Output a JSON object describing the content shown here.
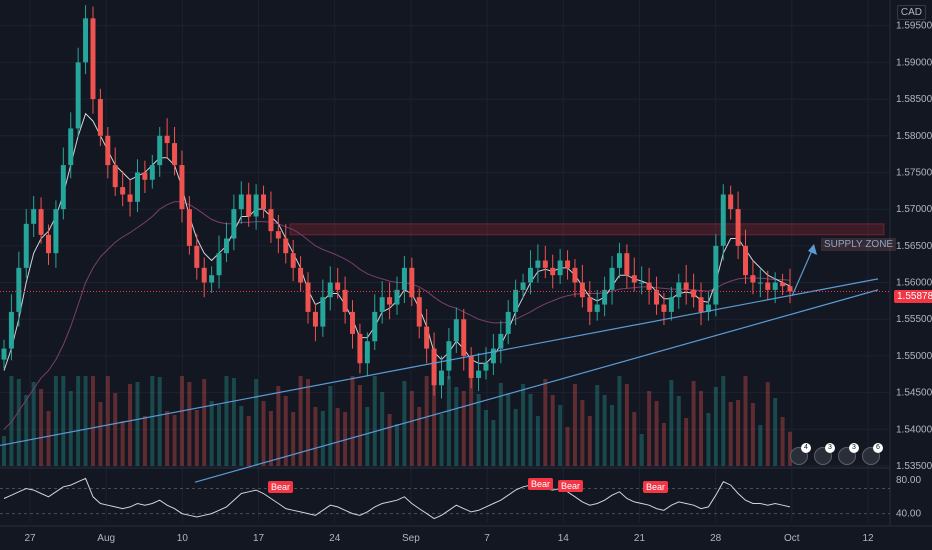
{
  "header": {
    "currency": "CAD"
  },
  "last_price": {
    "label": "1.55878",
    "value": 1.55878,
    "color": "#f23645"
  },
  "annotations": {
    "supply_zone": "SUPPLY ZONE",
    "bear_labels": [
      "Bear",
      "Bear",
      "Bear",
      "Bear"
    ]
  },
  "event_badges": [
    "4",
    "3",
    "3",
    "6"
  ],
  "colors": {
    "background": "#131722",
    "up": "#26a69a",
    "down": "#ef5350",
    "ma_fast": "#d1d4dc",
    "ma_slow": "#7b3f6e",
    "trendline": "#5b9bd5",
    "grid": "#1e2230"
  },
  "chart_data": [
    {
      "type": "candlestick",
      "symbol_currency": "CAD",
      "ylim": [
        1.535,
        1.5985
      ],
      "price_ticks": [
        "1.59500",
        "1.59000",
        "1.58500",
        "1.58000",
        "1.57500",
        "1.57000",
        "1.56500",
        "1.56000",
        "1.55500",
        "1.55000",
        "1.54500",
        "1.54000",
        "1.53500"
      ],
      "date_ticks": [
        "27",
        "Aug",
        "10",
        "17",
        "24",
        "Sep",
        "7",
        "14",
        "21",
        "28",
        "Oct",
        "12"
      ],
      "last_price": 1.55878,
      "closes": [
        1.551,
        1.556,
        1.562,
        1.568,
        1.57,
        1.5665,
        1.564,
        1.57,
        1.576,
        1.581,
        1.59,
        1.596,
        1.585,
        1.58,
        1.576,
        1.573,
        1.572,
        1.571,
        1.575,
        1.574,
        1.576,
        1.58,
        1.579,
        1.576,
        1.57,
        1.565,
        1.562,
        1.56,
        1.561,
        1.564,
        1.566,
        1.57,
        1.572,
        1.569,
        1.572,
        1.57,
        1.567,
        1.566,
        1.564,
        1.562,
        1.56,
        1.556,
        1.554,
        1.558,
        1.56,
        1.559,
        1.556,
        1.553,
        1.549,
        1.552,
        1.556,
        1.558,
        1.557,
        1.559,
        1.562,
        1.558,
        1.554,
        1.551,
        1.546,
        1.548,
        1.552,
        1.555,
        1.55,
        1.547,
        1.548,
        1.549,
        1.551,
        1.553,
        1.556,
        1.559,
        1.56,
        1.562,
        1.563,
        1.562,
        1.561,
        1.563,
        1.562,
        1.56,
        1.558,
        1.556,
        1.557,
        1.559,
        1.562,
        1.564,
        1.561,
        1.56,
        1.56,
        1.559,
        1.557,
        1.556,
        1.558,
        1.56,
        1.559,
        1.558,
        1.556,
        1.557,
        1.565,
        1.572,
        1.57,
        1.565,
        1.561,
        1.56,
        1.56,
        1.559,
        1.56,
        1.5595,
        1.55878
      ],
      "ma_fast": [
        1.548,
        1.551,
        1.555,
        1.56,
        1.564,
        1.566,
        1.567,
        1.569,
        1.572,
        1.576,
        1.58,
        1.583,
        1.582,
        1.58,
        1.578,
        1.576,
        1.575,
        1.574,
        1.5745,
        1.575,
        1.576,
        1.577,
        1.577,
        1.576,
        1.573,
        1.569,
        1.566,
        1.564,
        1.563,
        1.564,
        1.565,
        1.567,
        1.569,
        1.569,
        1.57,
        1.57,
        1.569,
        1.568,
        1.566,
        1.564,
        1.562,
        1.559,
        1.557,
        1.5575,
        1.5585,
        1.5585,
        1.557,
        1.555,
        1.5525,
        1.5525,
        1.554,
        1.556,
        1.5565,
        1.5575,
        1.559,
        1.5585,
        1.5565,
        1.554,
        1.5505,
        1.5495,
        1.5505,
        1.552,
        1.551,
        1.5495,
        1.549,
        1.549,
        1.55,
        1.5515,
        1.5535,
        1.556,
        1.558,
        1.56,
        1.5615,
        1.5618,
        1.5615,
        1.562,
        1.562,
        1.561,
        1.5595,
        1.558,
        1.5575,
        1.558,
        1.5595,
        1.561,
        1.561,
        1.5605,
        1.5602,
        1.5598,
        1.5588,
        1.5578,
        1.5578,
        1.5585,
        1.5587,
        1.5585,
        1.5575,
        1.5573,
        1.56,
        1.564,
        1.566,
        1.566,
        1.5645,
        1.563,
        1.562,
        1.561,
        1.5605,
        1.56,
        1.5595
      ],
      "ma_slow": [
        1.54,
        1.541,
        1.5425,
        1.544,
        1.5455,
        1.547,
        1.548,
        1.5495,
        1.5515,
        1.554,
        1.557,
        1.56,
        1.562,
        1.5635,
        1.5645,
        1.5655,
        1.5662,
        1.5668,
        1.5675,
        1.5682,
        1.569,
        1.57,
        1.5706,
        1.571,
        1.571,
        1.5706,
        1.57,
        1.5693,
        1.5686,
        1.5682,
        1.568,
        1.568,
        1.5682,
        1.5682,
        1.5683,
        1.5683,
        1.5682,
        1.568,
        1.5676,
        1.5672,
        1.5666,
        1.5658,
        1.565,
        1.5645,
        1.5641,
        1.5637,
        1.5632,
        1.5626,
        1.5618,
        1.5612,
        1.5608,
        1.5605,
        1.5602,
        1.56,
        1.56,
        1.5598,
        1.5594,
        1.5588,
        1.558,
        1.5573,
        1.5568,
        1.5565,
        1.556,
        1.5555,
        1.555,
        1.5547,
        1.5545,
        1.5545,
        1.5546,
        1.555,
        1.5555,
        1.556,
        1.5566,
        1.5571,
        1.5575,
        1.5579,
        1.5582,
        1.5584,
        1.5585,
        1.5585,
        1.5585,
        1.5586,
        1.5588,
        1.5591,
        1.5592,
        1.5593,
        1.5594,
        1.5594,
        1.5593,
        1.5592,
        1.5591,
        1.5591,
        1.5591,
        1.559,
        1.5589,
        1.5588,
        1.5592,
        1.5598,
        1.5602,
        1.5605,
        1.5606,
        1.5606,
        1.5606,
        1.5605,
        1.5604,
        1.5604,
        1.5603
      ],
      "supply_zone": {
        "from": 1.5665,
        "to": 1.568,
        "label": "SUPPLY ZONE"
      },
      "trendlines": [
        {
          "from_price": 1.5378,
          "to_price": 1.5605
        },
        {
          "from_price": 1.5328,
          "to_price": 1.559
        }
      ]
    },
    {
      "type": "line",
      "title": "",
      "y_ticks": [
        "80.00",
        "40.00"
      ],
      "ylim": [
        30,
        92
      ],
      "levels": [
        70,
        40
      ],
      "values": [
        58,
        62,
        66,
        70,
        68,
        64,
        60,
        66,
        72,
        74,
        78,
        82,
        60,
        52,
        50,
        48,
        46,
        48,
        52,
        50,
        52,
        56,
        50,
        46,
        40,
        38,
        36,
        38,
        40,
        44,
        48,
        56,
        64,
        66,
        68,
        64,
        58,
        52,
        46,
        44,
        42,
        40,
        38,
        44,
        50,
        48,
        44,
        40,
        38,
        42,
        48,
        52,
        54,
        56,
        60,
        52,
        46,
        40,
        34,
        38,
        44,
        50,
        46,
        42,
        44,
        48,
        52,
        56,
        62,
        68,
        72,
        74,
        74,
        70,
        68,
        70,
        66,
        60,
        54,
        50,
        52,
        56,
        62,
        66,
        58,
        54,
        52,
        50,
        46,
        44,
        50,
        54,
        52,
        50,
        46,
        48,
        62,
        78,
        74,
        64,
        56,
        52,
        52,
        50,
        52,
        50,
        48
      ],
      "signal_labels": [
        "Bear",
        "Bear",
        "Bear",
        "Bear"
      ]
    }
  ]
}
